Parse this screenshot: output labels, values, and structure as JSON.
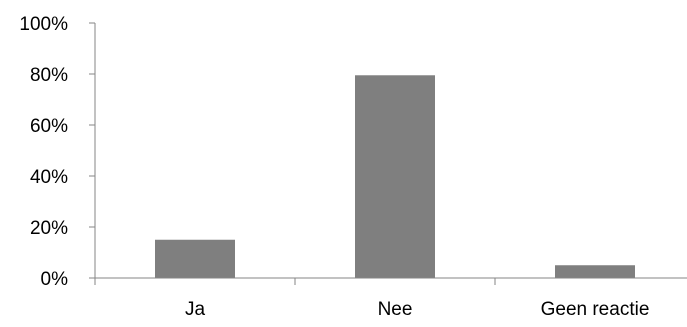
{
  "chart_data": {
    "type": "bar",
    "categories": [
      "Ja",
      "Nee",
      "Geen reactie"
    ],
    "values": [
      15,
      79.5,
      5
    ],
    "ylim": [
      0,
      100
    ],
    "yticks": [
      0,
      20,
      40,
      60,
      80,
      100
    ],
    "ytick_labels": [
      "0%",
      "20%",
      "40%",
      "60%",
      "80%",
      "100%"
    ],
    "grid": false,
    "legend": "none",
    "bar_color": "#7f7f7f",
    "axis_color": "#868686"
  }
}
